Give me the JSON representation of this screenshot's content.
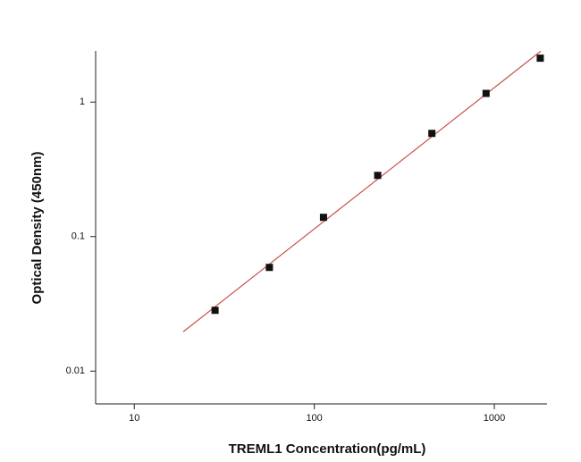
{
  "chart_data": {
    "type": "scatter",
    "x_label": "TREML1  Concentration(pg/mL)",
    "y_label": "Optical Density (450nm)",
    "x": [
      28.1,
      56.3,
      112.5,
      225,
      450,
      900,
      1800
    ],
    "values": [
      0.0283,
      0.059,
      0.139,
      0.285,
      0.585,
      1.16,
      2.12
    ],
    "color": "#111111",
    "fit_line": {
      "x": [
        18.7,
        1812
      ],
      "values": [
        0.0196,
        2.39
      ],
      "color": "#c9504d"
    },
    "xlog": true,
    "ylog": true,
    "xlim": [
      6.1,
      1963
    ],
    "ylim": [
      0.0057,
      2.4
    ],
    "xticks": [
      10,
      100,
      1000
    ],
    "yticks": [
      0.01,
      0.1,
      1
    ]
  }
}
